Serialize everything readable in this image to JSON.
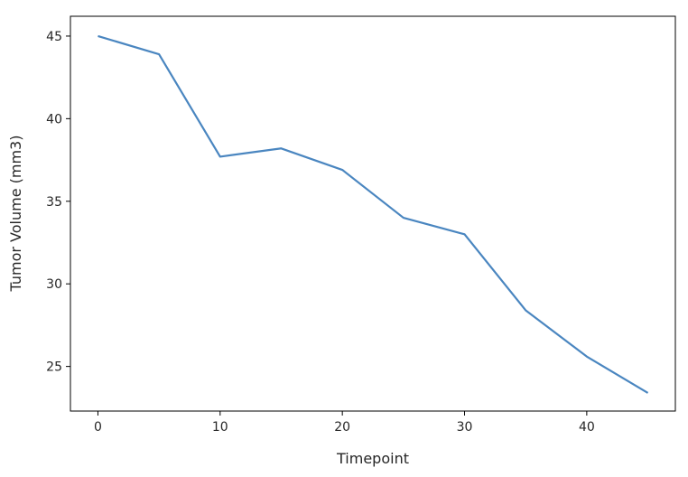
{
  "chart_data": {
    "type": "line",
    "title": "",
    "xlabel": "Timepoint",
    "ylabel": "Tumor Volume (mm3)",
    "x": [
      0,
      5,
      10,
      15,
      20,
      25,
      30,
      35,
      40,
      45
    ],
    "series": [
      {
        "values": [
          45.0,
          43.9,
          37.7,
          38.2,
          36.9,
          34.0,
          33.0,
          28.4,
          25.6,
          23.4
        ],
        "color": "#4a86c0"
      }
    ],
    "xlim": [
      -2.25,
      47.25
    ],
    "ylim": [
      22.3,
      46.2
    ],
    "xticks": [
      0,
      10,
      20,
      30,
      40
    ],
    "yticks": [
      25,
      30,
      35,
      40,
      45
    ],
    "grid": false
  }
}
